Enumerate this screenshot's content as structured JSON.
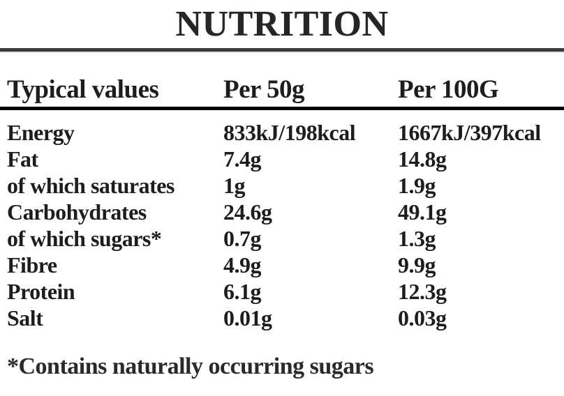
{
  "page": {
    "title": "NUTRITION",
    "table": {
      "columns": [
        "Typical values",
        "Per 50g",
        "Per 100G"
      ],
      "rows": [
        {
          "name": "Energy",
          "per50": "833kJ/198kcal",
          "per100": "1667kJ/397kcal"
        },
        {
          "name": "Fat",
          "per50": "7.4g",
          "per100": "14.8g"
        },
        {
          "name": "of which saturates",
          "per50": "1g",
          "per100": "1.9g"
        },
        {
          "name": "Carbohydrates",
          "per50": "24.6g",
          "per100": "49.1g"
        },
        {
          "name": "of which sugars*",
          "per50": "0.7g",
          "per100": "1.3g"
        },
        {
          "name": "Fibre",
          "per50": "4.9g",
          "per100": "9.9g"
        },
        {
          "name": "Protein",
          "per50": "6.1g",
          "per100": "12.3g"
        },
        {
          "name": "Salt",
          "per50": "0.01g",
          "per100": "0.03g"
        }
      ]
    },
    "footnote": "*Contains naturally occurring sugars",
    "colors": {
      "background": "#ffffff",
      "text": "#1d1d1d",
      "title_rule": "#3a3a3a",
      "header_rule": "#050505"
    }
  }
}
